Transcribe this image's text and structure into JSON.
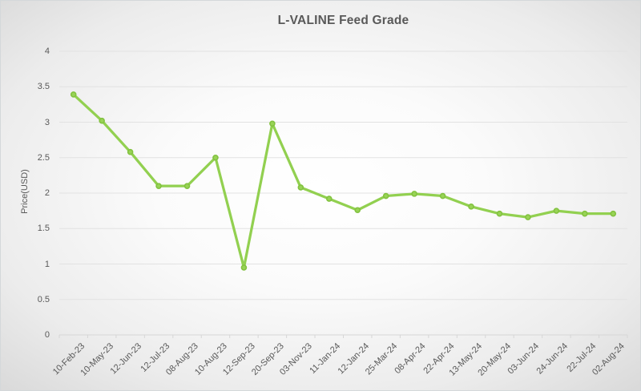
{
  "chart_data": {
    "type": "line",
    "title": "L-VALINE Feed Grade",
    "xlabel": "",
    "ylabel": "Price(USD)",
    "categories": [
      "10-Feb-23",
      "10-May-23",
      "12-Jun-23",
      "12-Jul-23",
      "08-Aug-23",
      "10-Aug-23",
      "12-Sep-23",
      "20-Sep-23",
      "03-Nov-23",
      "11-Jan-24",
      "12-Jan-24",
      "25-Mar-24",
      "08-Apr-24",
      "22-Apr-24",
      "13-May-24",
      "20-May-24",
      "03-Jun-24",
      "24-Jun-24",
      "22-Jul-24",
      "02-Aug-24"
    ],
    "values": [
      3.39,
      3.02,
      2.58,
      2.1,
      2.1,
      2.5,
      0.95,
      2.98,
      2.08,
      1.92,
      1.76,
      1.96,
      1.99,
      1.96,
      1.81,
      1.71,
      1.66,
      1.75,
      1.71,
      1.71
    ],
    "ylim": [
      0,
      4
    ],
    "ytick_step": 0.5,
    "grid": "horizontal",
    "legend": "none",
    "series_name": "L-VALINE Feed Grade",
    "series_color": "#92d050",
    "marker_style": "circle"
  },
  "style": {
    "text_color": "#595959",
    "gridline_color": "#e2e2e2",
    "axis_color": "#d6d6d6",
    "marker_fill": "#98d356",
    "marker_stroke": "#82c23f",
    "background_center": "#ffffff",
    "background_corner": "#c2c2c2"
  }
}
